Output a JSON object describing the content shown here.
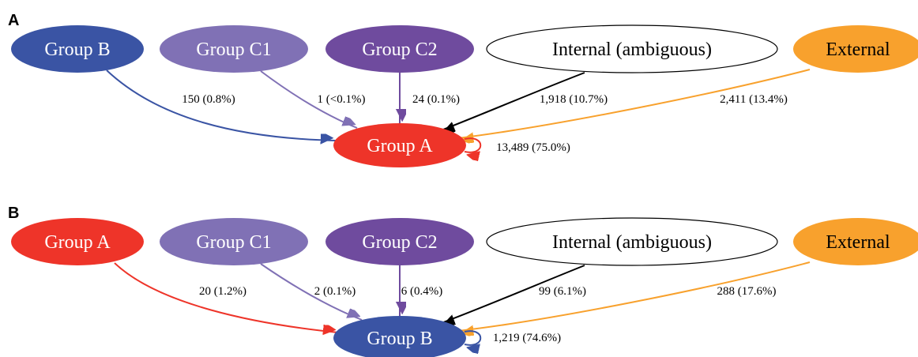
{
  "colors": {
    "group_a": "#ee3429",
    "group_b": "#3a54a4",
    "group_c1": "#8071b5",
    "group_c2": "#6f4b9e",
    "internal": "#ffffff",
    "external": "#f8a12d",
    "internal_edge": "#000000"
  },
  "panels": [
    {
      "label": "A",
      "target": {
        "label": "Group A",
        "color_key": "group_a"
      },
      "sources": [
        {
          "label": "Group B",
          "color_key": "group_b"
        },
        {
          "label": "Group C1",
          "color_key": "group_c1"
        },
        {
          "label": "Group C2",
          "color_key": "group_c2"
        },
        {
          "label": "Internal (ambiguous)",
          "color_key": "internal"
        },
        {
          "label": "External",
          "color_key": "external"
        }
      ],
      "edges": [
        {
          "label": "150 (0.8%)",
          "color_key": "group_b"
        },
        {
          "label": "1 (<0.1%)",
          "color_key": "group_c1"
        },
        {
          "label": "24 (0.1%)",
          "color_key": "group_c2"
        },
        {
          "label": "1,918 (10.7%)",
          "color_key": "internal_edge"
        },
        {
          "label": "2,411 (13.4%)",
          "color_key": "external"
        }
      ],
      "self_loop": {
        "label": "13,489 (75.0%)",
        "color_key": "group_a"
      }
    },
    {
      "label": "B",
      "target": {
        "label": "Group B",
        "color_key": "group_b"
      },
      "sources": [
        {
          "label": "Group A",
          "color_key": "group_a"
        },
        {
          "label": "Group C1",
          "color_key": "group_c1"
        },
        {
          "label": "Group C2",
          "color_key": "group_c2"
        },
        {
          "label": "Internal (ambiguous)",
          "color_key": "internal"
        },
        {
          "label": "External",
          "color_key": "external"
        }
      ],
      "edges": [
        {
          "label": "20 (1.2%)",
          "color_key": "group_a"
        },
        {
          "label": "2 (0.1%)",
          "color_key": "group_c1"
        },
        {
          "label": "6 (0.4%)",
          "color_key": "group_c2"
        },
        {
          "label": "99 (6.1%)",
          "color_key": "internal_edge"
        },
        {
          "label": "288 (17.6%)",
          "color_key": "external"
        }
      ],
      "self_loop": {
        "label": "1,219 (74.6%)",
        "color_key": "group_b"
      }
    }
  ]
}
